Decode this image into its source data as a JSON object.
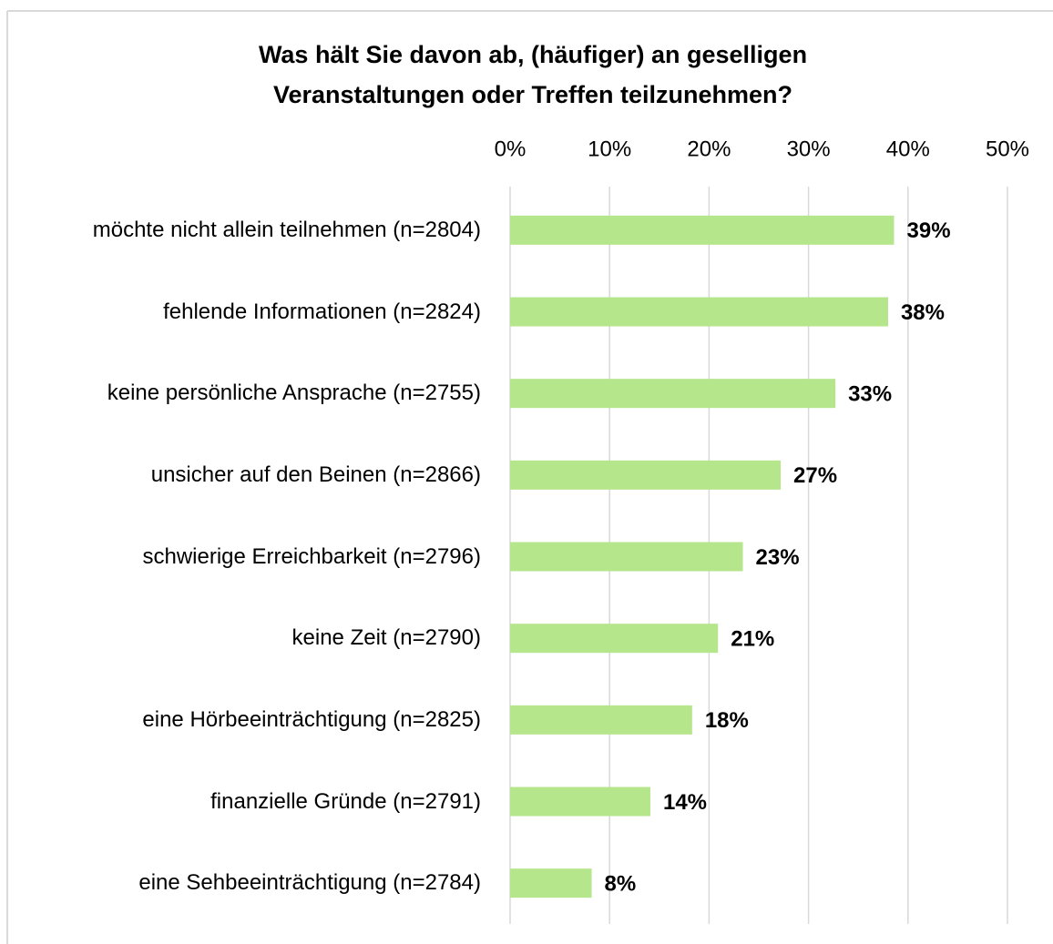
{
  "chart_data": {
    "type": "hbar",
    "title": "Was hält Sie davon ab, (häufiger) an geselligen Veranstaltungen oder Treffen teilzunehmen?",
    "categories": [
      "möchte nicht allein teilnehmen (n=2804)",
      "fehlende Informationen (n=2824)",
      "keine persönliche Ansprache (n=2755)",
      "unsicher auf den Beinen (n=2866)",
      "schwierige Erreichbarkeit (n=2796)",
      "keine Zeit (n=2790)",
      "eine Hörbeeinträchtigung (n=2825)",
      "finanzielle Gründe (n=2791)",
      "eine Sehbeeinträchtigung (n=2784)"
    ],
    "values": [
      38.6,
      38.0,
      32.7,
      27.2,
      23.4,
      20.9,
      18.3,
      14.1,
      8.2
    ],
    "value_labels": [
      "39%",
      "38%",
      "33%",
      "27%",
      "23%",
      "21%",
      "18%",
      "14%",
      "8%"
    ],
    "color": "#b5e68c",
    "xlim": [
      0,
      50
    ],
    "xticks": [
      {
        "value": 0,
        "label": "0%"
      },
      {
        "value": 10,
        "label": "10%"
      },
      {
        "value": 20,
        "label": "20%"
      },
      {
        "value": 30,
        "label": "30%"
      },
      {
        "value": 40,
        "label": "40%"
      },
      {
        "value": 50,
        "label": "50%"
      }
    ],
    "grid": true
  }
}
